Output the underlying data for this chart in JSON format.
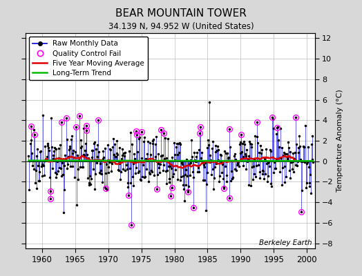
{
  "title": "BEAR MOUNTAIN TOWER",
  "subtitle": "34.139 N, 94.952 W (United States)",
  "ylabel": "Temperature Anomaly (°C)",
  "watermark": "Berkeley Earth",
  "xlim": [
    1957.5,
    2001.2
  ],
  "ylim": [
    -8.5,
    12.5
  ],
  "yticks": [
    -8,
    -6,
    -4,
    -2,
    0,
    2,
    4,
    6,
    8,
    10,
    12
  ],
  "xticks": [
    1960,
    1965,
    1970,
    1975,
    1980,
    1985,
    1990,
    1995,
    2000
  ],
  "raw_color": "#0000dd",
  "ma_color": "#dd0000",
  "trend_color": "#00bb00",
  "qc_color": "#ff00ff",
  "bg_color": "#d8d8d8",
  "plot_bg": "#ffffff",
  "seed": 17
}
